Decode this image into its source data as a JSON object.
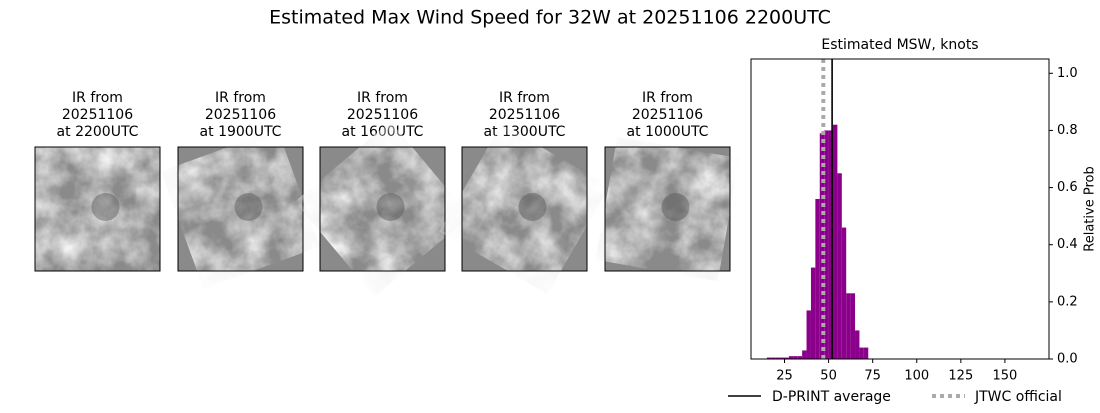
{
  "title": "Estimated Max Wind Speed for 32W at 20251106 2200UTC",
  "panels": [
    {
      "lines": [
        "IR from",
        "20251106",
        "at 2200UTC"
      ]
    },
    {
      "lines": [
        "IR from",
        "20251106",
        "at 1900UTC"
      ]
    },
    {
      "lines": [
        "IR from",
        "20251106",
        "at 1600UTC"
      ]
    },
    {
      "lines": [
        "IR from",
        "20251106",
        "at 1300UTC"
      ]
    },
    {
      "lines": [
        "IR from",
        "20251106",
        "at 1000UTC"
      ]
    }
  ],
  "chart_data": {
    "type": "histogram",
    "title": "Estimated MSW, knots",
    "y_label": "Relative Prob",
    "color": "#8b008b",
    "bins": [
      15,
      17.5,
      20,
      22.5,
      25,
      27.5,
      30,
      32.5,
      35,
      37.5,
      40,
      42.5,
      45,
      47.5,
      50,
      52.5,
      55,
      57.5,
      60,
      62.5,
      65,
      67.5,
      70,
      72.5
    ],
    "values": [
      0.005,
      0.005,
      0.005,
      0.005,
      0.005,
      0.01,
      0.01,
      0.01,
      0.03,
      0.17,
      0.32,
      0.56,
      0.79,
      0.8,
      0.8,
      0.82,
      0.65,
      0.46,
      0.23,
      0.23,
      0.1,
      0.04,
      0.04
    ],
    "xlim": [
      6,
      175
    ],
    "ylim": [
      0,
      1.05
    ],
    "xticks": [
      25,
      50,
      75,
      100,
      125,
      150
    ],
    "yticks": [
      {
        "value": 0,
        "label": "0.0"
      },
      {
        "value": 0.2,
        "label": "0.2"
      },
      {
        "value": 0.4,
        "label": "0.4"
      },
      {
        "value": 0.6,
        "label": "0.6"
      },
      {
        "value": 0.8,
        "label": "0.8"
      },
      {
        "value": 1,
        "label": "1.0"
      }
    ],
    "reference_lines": [
      {
        "name": "D-PRINT average",
        "value": 52,
        "color": "#000000",
        "style": "solid"
      },
      {
        "name": "JTWC official",
        "value": 47,
        "color": "#aaaaaa",
        "style": "dotted"
      }
    ]
  }
}
